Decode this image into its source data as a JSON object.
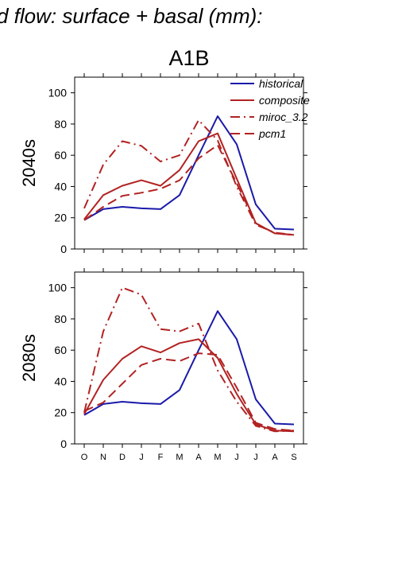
{
  "figure": {
    "suptitle": "d flow: surface + basal (mm):",
    "scenario": "A1B"
  },
  "chart_data": [
    {
      "type": "line",
      "panel_label": "2040s",
      "categories": [
        "O",
        "N",
        "D",
        "J",
        "F",
        "M",
        "A",
        "M",
        "J",
        "J",
        "A",
        "S"
      ],
      "ylim": [
        0,
        110
      ],
      "yticks": [
        0,
        20,
        40,
        60,
        80,
        100
      ],
      "grid": false,
      "legend_position": "top-right",
      "series": [
        {
          "name": "historical",
          "color": "#1a1aaa",
          "dash": "solid",
          "values": [
            18.5,
            25.5,
            27,
            26,
            25.5,
            34.5,
            60,
            85,
            67,
            28.5,
            13,
            12.5
          ]
        },
        {
          "name": "composite",
          "color": "#b22222",
          "dash": "solid",
          "values": [
            19,
            34.5,
            40.5,
            44,
            40.5,
            50.5,
            69,
            74,
            45,
            16.5,
            10,
            9
          ]
        },
        {
          "name": "miroc_3.2",
          "color": "#b22222",
          "dash": "dashdot",
          "values": [
            26,
            54,
            69,
            66,
            56,
            60,
            82.5,
            69.5,
            40,
            15.5,
            10.5,
            9
          ]
        },
        {
          "name": "pcm1",
          "color": "#b22222",
          "dash": "dashed",
          "values": [
            18.5,
            27,
            34,
            36,
            38.5,
            44,
            58,
            66.5,
            42,
            16.5,
            10,
            9
          ]
        }
      ]
    },
    {
      "type": "line",
      "panel_label": "2080s",
      "categories": [
        "O",
        "N",
        "D",
        "J",
        "F",
        "M",
        "A",
        "M",
        "J",
        "J",
        "A",
        "S"
      ],
      "ylim": [
        0,
        110
      ],
      "yticks": [
        0,
        20,
        40,
        60,
        80,
        100
      ],
      "grid": false,
      "series": [
        {
          "name": "historical",
          "color": "#1a1aaa",
          "dash": "solid",
          "values": [
            18.5,
            25.5,
            27,
            26,
            25.5,
            34.5,
            60,
            85,
            67,
            28.5,
            13,
            12.5
          ]
        },
        {
          "name": "composite",
          "color": "#b22222",
          "dash": "solid",
          "values": [
            19,
            41,
            54.5,
            62.5,
            58.5,
            64.5,
            67,
            55,
            32,
            12.5,
            8.5,
            8
          ]
        },
        {
          "name": "miroc_3.2",
          "color": "#b22222",
          "dash": "dashdot",
          "values": [
            20,
            72,
            100,
            95.5,
            73.5,
            72,
            77,
            47,
            27,
            11.5,
            8,
            8.5
          ]
        },
        {
          "name": "pcm1",
          "color": "#b22222",
          "dash": "dashed",
          "values": [
            21,
            26.5,
            38.5,
            50.5,
            54.5,
            53,
            58,
            57,
            36,
            13.5,
            9.5,
            8.5
          ]
        }
      ]
    }
  ]
}
